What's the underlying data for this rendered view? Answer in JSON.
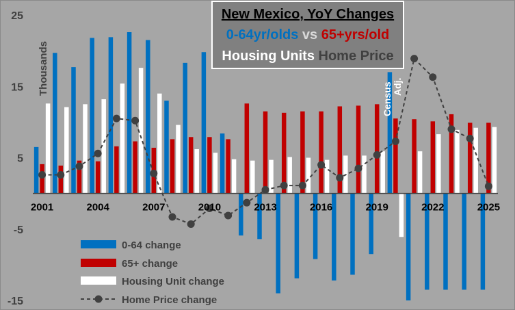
{
  "chart_data": {
    "type": "bar",
    "title_line1": "New Mexico, YoY Changes",
    "title_line2_a": "0-64yr/olds",
    "title_line2_vs": " vs ",
    "title_line2_b": "65+yrs/old",
    "title_line3_a": "Housing Units",
    "title_line3_b": " Home Price",
    "ylabel": "Thousands",
    "ylim": [
      -15,
      25
    ],
    "yticks": [
      25,
      15,
      5,
      -5,
      -15
    ],
    "xticks": [
      "2001",
      "2004",
      "2007",
      "2010",
      "2013",
      "2016",
      "2019",
      "2022",
      "2025"
    ],
    "annotations": {
      "census": "Census",
      "adj": "Adj."
    },
    "colors": {
      "age_0_64": "#0070c0",
      "age_65_plus": "#c00000",
      "housing": "#ffffff",
      "home_price": "#404040",
      "background": "#a6a6a6"
    },
    "categories": [
      "2001",
      "2002",
      "2003",
      "2004",
      "2005",
      "2006",
      "2007",
      "2008",
      "2009",
      "2010",
      "2011",
      "2012",
      "2013",
      "2014",
      "2015",
      "2016",
      "2017",
      "2018",
      "2019",
      "2020",
      "2021",
      "2022",
      "2023",
      "2024",
      "2025"
    ],
    "series": [
      {
        "name": "0-64 change",
        "type": "bar",
        "values": [
          6.5,
          19.7,
          17.7,
          21.8,
          21.9,
          22.6,
          21.5,
          13,
          18.3,
          19.8,
          8.4,
          -5.9,
          -6.4,
          -14,
          -11.9,
          -9.2,
          -12.2,
          -11.4,
          -8.5,
          17,
          -15,
          -13.5,
          -13.5,
          -13.5,
          -13.5
        ]
      },
      {
        "name": "65+ change",
        "type": "bar",
        "values": [
          4.1,
          3.9,
          4.6,
          4.5,
          6.6,
          7.3,
          6.4,
          7.6,
          7.9,
          7.9,
          7.6,
          12.6,
          11.5,
          11.3,
          11.5,
          11.5,
          12.2,
          12.3,
          12.5,
          10.5,
          10.4,
          10.1,
          11.1,
          9.9,
          9.9
        ]
      },
      {
        "name": "Housing Unit change",
        "type": "bar",
        "values": [
          12.6,
          12.1,
          12.5,
          13.2,
          15.4,
          17.6,
          14,
          9.6,
          6.2,
          5.7,
          4.8,
          4.6,
          4.7,
          5.1,
          5,
          4.7,
          5.3,
          5.3,
          5.9,
          -6.1,
          5.9,
          8.3,
          8.9,
          9.2,
          9.3
        ]
      },
      {
        "name": "Home Price change",
        "type": "line",
        "values": [
          2.6,
          2.6,
          3.8,
          5.6,
          10.5,
          10.2,
          2.8,
          -3.3,
          -4.3,
          -2.1,
          -3.1,
          -1.3,
          0.5,
          1.1,
          1.1,
          4,
          2.2,
          3.5,
          5.4,
          7.3,
          18.9,
          16.3,
          9,
          7.7,
          1
        ]
      }
    ],
    "legend_position": "bottom-left",
    "grid": false
  }
}
